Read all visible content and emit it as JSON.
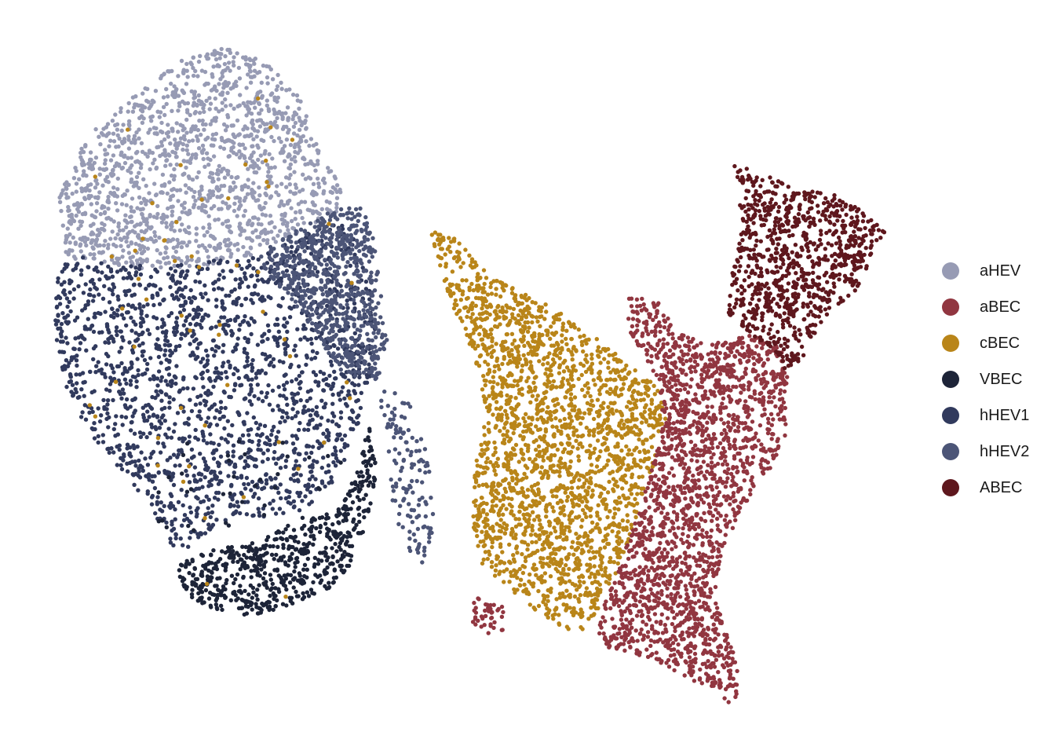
{
  "chart_data": {
    "type": "scatter",
    "title": "",
    "xlabel": "",
    "ylabel": "",
    "grid": false,
    "axes": "none",
    "legend_position": "right",
    "series": [
      {
        "name": "aHEV",
        "color": "#979bb4"
      },
      {
        "name": "aBEC",
        "color": "#913640"
      },
      {
        "name": "cBEC",
        "color": "#b98519"
      },
      {
        "name": "VBEC",
        "color": "#1d2438"
      },
      {
        "name": "hHEV1",
        "color": "#313a5d"
      },
      {
        "name": "hHEV2",
        "color": "#4c5577"
      },
      {
        "name": "ABEC",
        "color": "#5e171d"
      }
    ]
  }
}
